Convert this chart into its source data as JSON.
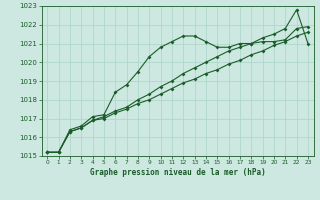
{
  "xlabel": "Graphe pression niveau de la mer (hPa)",
  "xlim": [
    -0.5,
    23.5
  ],
  "ylim": [
    1015,
    1023
  ],
  "yticks": [
    1015,
    1016,
    1017,
    1018,
    1019,
    1020,
    1021,
    1022,
    1023
  ],
  "xticks": [
    0,
    1,
    2,
    3,
    4,
    5,
    6,
    7,
    8,
    9,
    10,
    11,
    12,
    13,
    14,
    15,
    16,
    17,
    18,
    19,
    20,
    21,
    22,
    23
  ],
  "bg_color": "#cce8e0",
  "grid_color": "#aad4ca",
  "line_color": "#1a5c2a",
  "line1_x": [
    0,
    1,
    2,
    3,
    4,
    5,
    6,
    7,
    8,
    9,
    10,
    11,
    12,
    13,
    14,
    15,
    16,
    17,
    18,
    19,
    20,
    21,
    22,
    23
  ],
  "line1_y": [
    1015.2,
    1015.2,
    1016.4,
    1016.6,
    1017.1,
    1017.2,
    1018.4,
    1018.8,
    1019.5,
    1020.3,
    1020.8,
    1021.1,
    1021.4,
    1021.4,
    1021.1,
    1020.8,
    1020.8,
    1021.0,
    1021.0,
    1021.1,
    1021.1,
    1021.2,
    1021.8,
    1021.9
  ],
  "line2_x": [
    0,
    1,
    2,
    3,
    4,
    5,
    6,
    7,
    8,
    9,
    10,
    11,
    12,
    13,
    14,
    15,
    16,
    17,
    18,
    19,
    20,
    21,
    22,
    23
  ],
  "line2_y": [
    1015.2,
    1015.2,
    1016.3,
    1016.5,
    1016.9,
    1017.0,
    1017.3,
    1017.5,
    1017.8,
    1018.0,
    1018.3,
    1018.6,
    1018.9,
    1019.1,
    1019.4,
    1019.6,
    1019.9,
    1020.1,
    1020.4,
    1020.6,
    1020.9,
    1021.1,
    1021.4,
    1021.6
  ],
  "line3_x": [
    0,
    1,
    2,
    3,
    4,
    5,
    6,
    7,
    8,
    9,
    10,
    11,
    12,
    13,
    14,
    15,
    16,
    17,
    18,
    19,
    20,
    21,
    22,
    23
  ],
  "line3_y": [
    1015.2,
    1015.2,
    1016.3,
    1016.5,
    1016.9,
    1017.1,
    1017.4,
    1017.6,
    1018.0,
    1018.3,
    1018.7,
    1019.0,
    1019.4,
    1019.7,
    1020.0,
    1020.3,
    1020.6,
    1020.8,
    1021.0,
    1021.3,
    1021.5,
    1021.8,
    1022.8,
    1021.0
  ]
}
